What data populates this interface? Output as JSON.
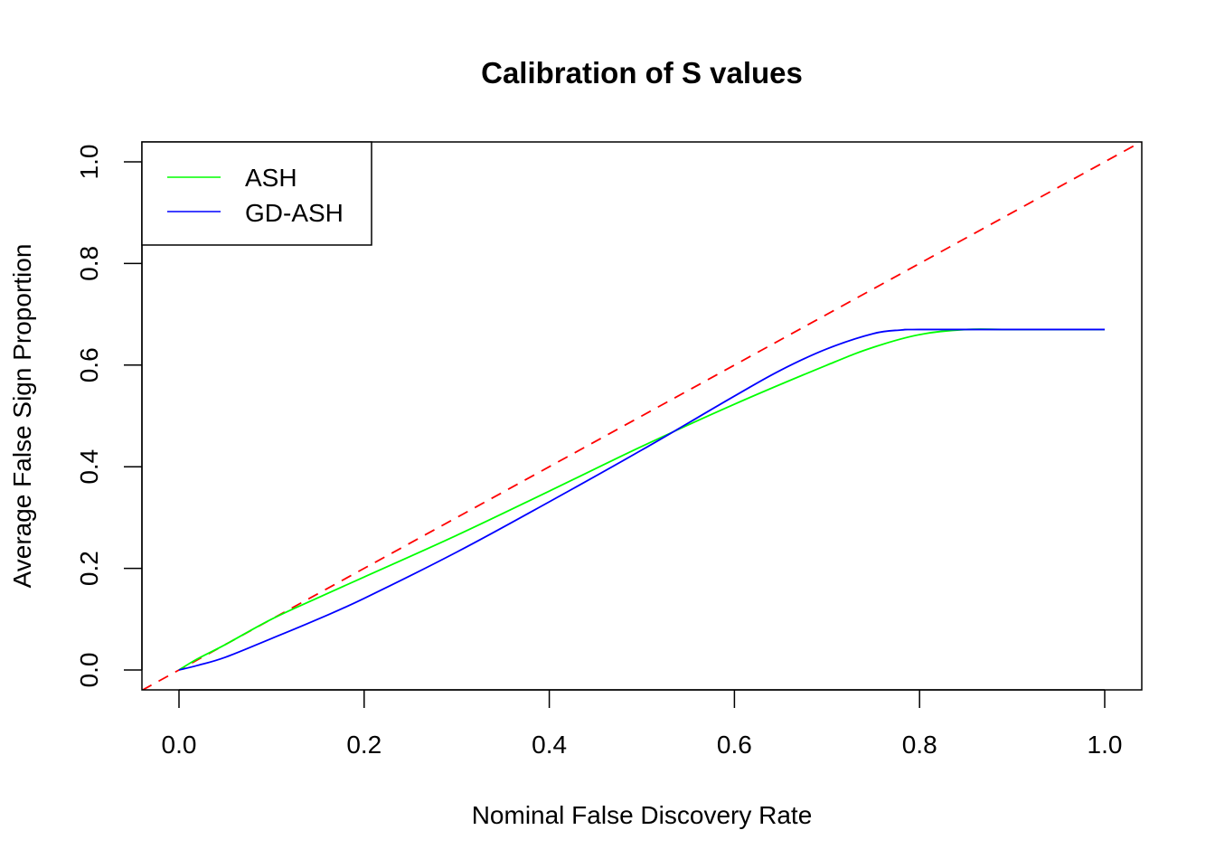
{
  "chart_data": {
    "type": "line",
    "title": "Calibration of S values",
    "xlabel": "Nominal False Discovery Rate",
    "ylabel": "Average False Sign Proportion",
    "xlim": [
      -0.04,
      1.04
    ],
    "ylim": [
      -0.04,
      1.04
    ],
    "xticks": [
      0.0,
      0.2,
      0.4,
      0.6,
      0.8,
      1.0
    ],
    "xtick_labels": [
      "0.0",
      "0.2",
      "0.4",
      "0.6",
      "0.8",
      "1.0"
    ],
    "yticks": [
      0.0,
      0.2,
      0.4,
      0.6,
      0.8,
      1.0
    ],
    "ytick_labels": [
      "0.0",
      "0.2",
      "0.4",
      "0.6",
      "0.8",
      "1.0"
    ],
    "grid": false,
    "legend_position": "top-left",
    "series": [
      {
        "name": "ASH",
        "color": "#00ff00",
        "style": "solid",
        "x": [
          0.0,
          0.02,
          0.05,
          0.1,
          0.15,
          0.2,
          0.3,
          0.4,
          0.5,
          0.6,
          0.7,
          0.75,
          0.8,
          0.85,
          0.9,
          1.0
        ],
        "y": [
          0.0,
          0.022,
          0.05,
          0.1,
          0.142,
          0.183,
          0.265,
          0.352,
          0.44,
          0.523,
          0.6,
          0.635,
          0.66,
          0.67,
          0.67,
          0.67
        ]
      },
      {
        "name": "GD-ASH",
        "color": "#0000ff",
        "style": "solid",
        "x": [
          0.0,
          0.02,
          0.05,
          0.1,
          0.15,
          0.2,
          0.3,
          0.4,
          0.5,
          0.6,
          0.65,
          0.7,
          0.75,
          0.78,
          0.8,
          0.9,
          1.0
        ],
        "y": [
          0.0,
          0.009,
          0.025,
          0.062,
          0.1,
          0.141,
          0.232,
          0.331,
          0.433,
          0.539,
          0.59,
          0.632,
          0.662,
          0.669,
          0.67,
          0.67,
          0.67
        ]
      }
    ],
    "reference_line": {
      "name": "y = x",
      "color": "#ff0000",
      "style": "dashed",
      "slope": 1,
      "intercept": 0
    }
  }
}
